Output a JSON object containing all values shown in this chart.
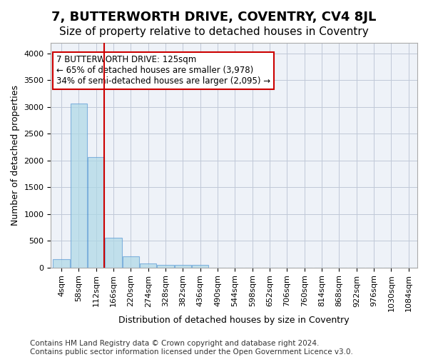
{
  "title": "7, BUTTERWORTH DRIVE, COVENTRY, CV4 8JL",
  "subtitle": "Size of property relative to detached houses in Coventry",
  "xlabel": "Distribution of detached houses by size in Coventry",
  "ylabel": "Number of detached properties",
  "footer_line1": "Contains HM Land Registry data © Crown copyright and database right 2024.",
  "footer_line2": "Contains public sector information licensed under the Open Government Licence v3.0.",
  "bin_labels": [
    "4sqm",
    "58sqm",
    "112sqm",
    "166sqm",
    "220sqm",
    "274sqm",
    "328sqm",
    "382sqm",
    "436sqm",
    "490sqm",
    "544sqm",
    "598sqm",
    "652sqm",
    "706sqm",
    "760sqm",
    "814sqm",
    "868sqm",
    "922sqm",
    "976sqm",
    "1030sqm",
    "1084sqm"
  ],
  "bar_values": [
    150,
    3060,
    2070,
    555,
    215,
    75,
    55,
    55,
    55,
    0,
    0,
    0,
    0,
    0,
    0,
    0,
    0,
    0,
    0,
    0,
    0
  ],
  "bar_color": "#add8e6",
  "bar_edgecolor": "#5b9bd5",
  "bar_alpha": 0.7,
  "vline_x": 2.48,
  "vline_color": "#cc0000",
  "annotation_text": "7 BUTTERWORTH DRIVE: 125sqm\n← 65% of detached houses are smaller (3,978)\n34% of semi-detached houses are larger (2,095) →",
  "annotation_box_color": "#cc0000",
  "annotation_text_color": "#000000",
  "ylim": [
    0,
    4200
  ],
  "yticks": [
    0,
    500,
    1000,
    1500,
    2000,
    2500,
    3000,
    3500,
    4000
  ],
  "grid_color": "#c0c8d8",
  "bg_color": "#eef2f8",
  "title_fontsize": 13,
  "subtitle_fontsize": 11,
  "axis_label_fontsize": 9,
  "tick_fontsize": 8,
  "footer_fontsize": 7.5
}
